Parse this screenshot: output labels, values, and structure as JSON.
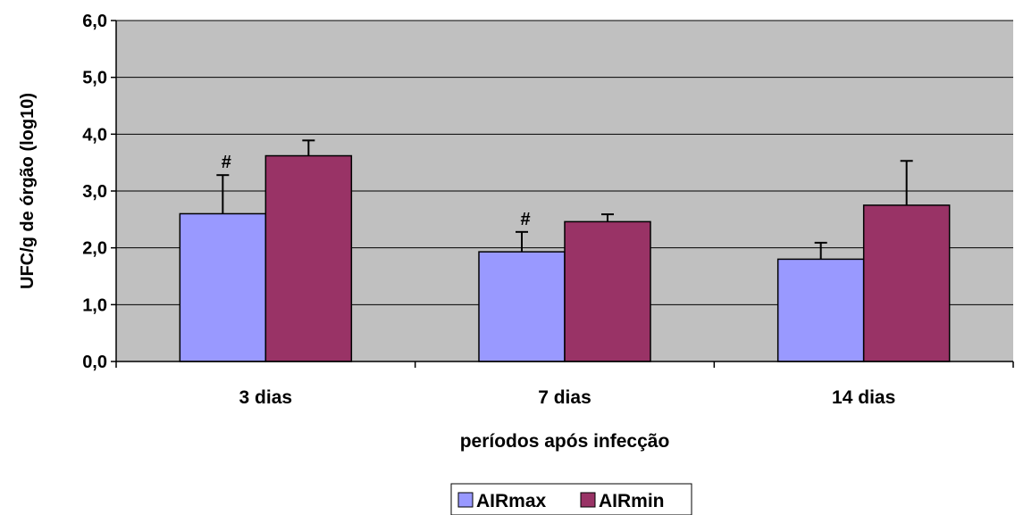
{
  "chart_data": {
    "type": "bar",
    "categories": [
      "3 dias",
      "7 dias",
      "14 dias"
    ],
    "series": [
      {
        "name": "AIRmax",
        "color": "#9999FF",
        "values": [
          2.6,
          1.93,
          1.8
        ],
        "errors": [
          0.68,
          0.35,
          0.29
        ]
      },
      {
        "name": "AIRmin",
        "color": "#993366",
        "values": [
          3.62,
          2.46,
          2.75
        ],
        "errors": [
          0.27,
          0.13,
          0.78
        ]
      }
    ],
    "annotations": [
      {
        "category": 0,
        "series": 0,
        "text": "#"
      },
      {
        "category": 1,
        "series": 0,
        "text": "#"
      }
    ],
    "xlabel": "períodos após infecção",
    "ylabel": "UFC/g de órgão (log10)",
    "ylim": [
      0,
      6
    ],
    "yticks": [
      "0,0",
      "1,0",
      "2,0",
      "3,0",
      "4,0",
      "5,0",
      "6,0"
    ],
    "grid": true,
    "plot_background": "#C0C0C0",
    "legend_position": "bottom-center"
  }
}
